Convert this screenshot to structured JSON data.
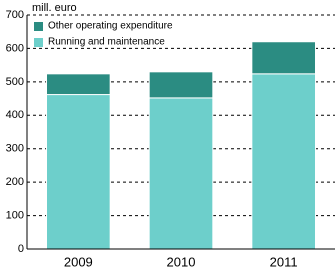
{
  "chart_data": {
    "type": "bar",
    "stacked": true,
    "unit_label": "mill. euro",
    "categories": [
      "2009",
      "2010",
      "2011"
    ],
    "series": [
      {
        "name": "Running and maintenance",
        "color": "#6dcfcb",
        "values": [
          462,
          452,
          524
        ]
      },
      {
        "name": "Other operating expenditure",
        "color": "#2b8c82",
        "values": [
          62,
          78,
          96
        ]
      }
    ],
    "ylim": [
      0,
      700
    ],
    "yticks": [
      0,
      100,
      200,
      300,
      400,
      500,
      600,
      700
    ],
    "grid": true
  }
}
